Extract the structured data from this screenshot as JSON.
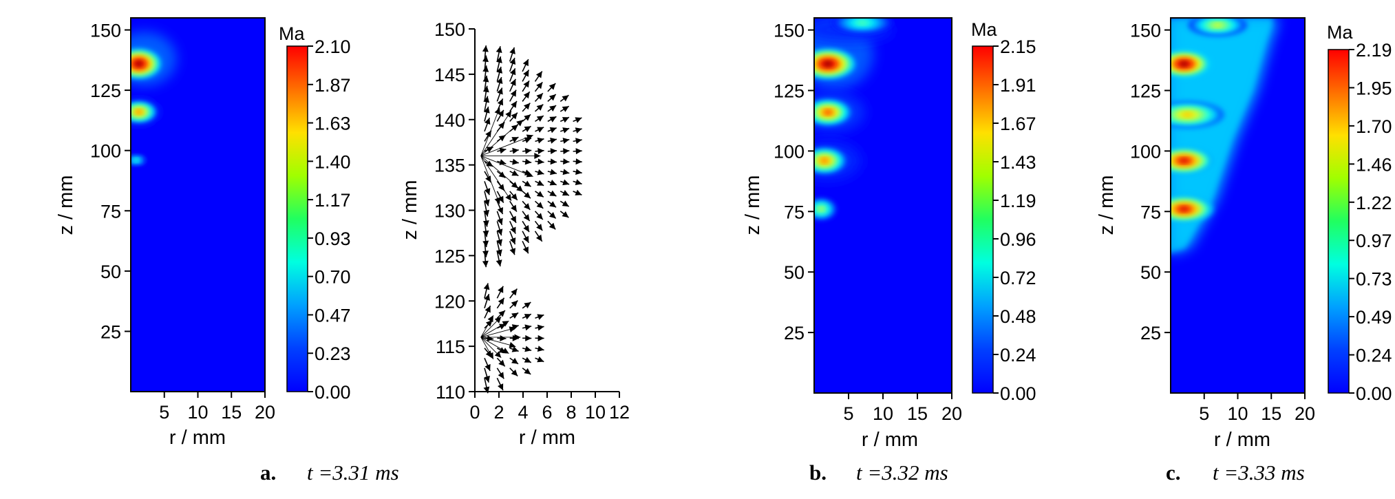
{
  "chart_data": [
    {
      "panel": "a",
      "type": "heatmap",
      "caption": {
        "letter": "a.",
        "time": "t =3.31 ms"
      },
      "xlabel": "r / mm",
      "ylabel": "z / mm",
      "xlim": [
        0,
        20
      ],
      "ylim": [
        0,
        155
      ],
      "xticks": [
        5,
        10,
        15,
        20
      ],
      "yticks": [
        25,
        50,
        75,
        100,
        125,
        150
      ],
      "colorbar": {
        "title": "Ma",
        "ticks": [
          "0.00",
          "0.23",
          "0.47",
          "0.70",
          "0.93",
          "1.17",
          "1.40",
          "1.63",
          "1.87",
          "2.10"
        ]
      },
      "hotspots": [
        {
          "r": 1.2,
          "z": 136,
          "ma": 2.1,
          "sr": 1.5,
          "sz": 2.8
        },
        {
          "r": 1.2,
          "z": 116,
          "ma": 1.6,
          "sr": 1.2,
          "sz": 2.0
        },
        {
          "r": 0.8,
          "z": 96,
          "ma": 0.9,
          "sr": 0.7,
          "sz": 1.0
        }
      ],
      "haze": [
        {
          "r": 2.0,
          "z": 138,
          "ma": 0.45,
          "sr": 3.0,
          "sz": 7.0
        },
        {
          "r": 1.2,
          "z": 116,
          "ma": 0.3,
          "sr": 2.0,
          "sz": 3.5
        }
      ]
    },
    {
      "panel": "a-vectors",
      "type": "scatter",
      "xlabel": "r / mm",
      "ylabel": "z / mm",
      "xlim": [
        0,
        12
      ],
      "ylim": [
        110,
        150
      ],
      "xticks": [
        "0",
        "2",
        "4",
        "6",
        "8",
        "10",
        "12"
      ],
      "yticks": [
        "110",
        "115",
        "120",
        "125",
        "130",
        "135",
        "140",
        "145",
        "150"
      ],
      "vector_fields": [
        {
          "source": [
            0.5,
            136
          ],
          "rmax": 9,
          "zmin": 125,
          "zmax": 147
        },
        {
          "source": [
            0.5,
            116
          ],
          "rmax": 6,
          "zmin": 111,
          "zmax": 121
        }
      ]
    },
    {
      "panel": "b",
      "type": "heatmap",
      "caption": {
        "letter": "b.",
        "time": "t =3.32 ms"
      },
      "xlabel": "r / mm",
      "ylabel": "z / mm",
      "xlim": [
        0,
        20
      ],
      "ylim": [
        0,
        155
      ],
      "xticks": [
        5,
        10,
        15,
        20
      ],
      "yticks": [
        25,
        50,
        75,
        100,
        125,
        150
      ],
      "colorbar": {
        "title": "Ma",
        "ticks": [
          "0.00",
          "0.24",
          "0.48",
          "0.72",
          "0.96",
          "1.19",
          "1.43",
          "1.67",
          "1.91",
          "2.15"
        ]
      },
      "hotspots": [
        {
          "r": 2.0,
          "z": 136,
          "ma": 2.15,
          "sr": 1.8,
          "sz": 2.8
        },
        {
          "r": 2.0,
          "z": 116,
          "ma": 1.75,
          "sr": 1.5,
          "sz": 2.4
        },
        {
          "r": 1.5,
          "z": 96,
          "ma": 1.65,
          "sr": 1.4,
          "sz": 2.4
        },
        {
          "r": 1.0,
          "z": 76,
          "ma": 1.2,
          "sr": 1.0,
          "sz": 2.0
        },
        {
          "r": 7.0,
          "z": 153,
          "ma": 1.0,
          "sr": 2.0,
          "sz": 2.0
        }
      ],
      "haze": [
        {
          "r": 3.0,
          "z": 140,
          "ma": 0.45,
          "sr": 3.5,
          "sz": 9.0
        },
        {
          "r": 2.5,
          "z": 116,
          "ma": 0.38,
          "sr": 3.0,
          "sz": 5.0
        },
        {
          "r": 2.0,
          "z": 96,
          "ma": 0.35,
          "sr": 3.0,
          "sz": 5.0
        },
        {
          "r": 5.0,
          "z": 150,
          "ma": 0.35,
          "sr": 4.0,
          "sz": 3.0
        }
      ]
    },
    {
      "panel": "c",
      "type": "heatmap",
      "caption": {
        "letter": "c.",
        "time": "t =3.33 ms"
      },
      "xlabel": "r / mm",
      "ylabel": "z / mm",
      "xlim": [
        0,
        20
      ],
      "ylim": [
        0,
        155
      ],
      "xticks": [
        5,
        10,
        15,
        20
      ],
      "yticks": [
        25,
        50,
        75,
        100,
        125,
        150
      ],
      "colorbar": {
        "title": "Ma",
        "ticks": [
          "0.00",
          "0.24",
          "0.49",
          "0.73",
          "0.97",
          "1.22",
          "1.46",
          "1.70",
          "1.95",
          "2.19"
        ]
      },
      "hotspots": [
        {
          "r": 2.0,
          "z": 136,
          "ma": 2.19,
          "sr": 1.8,
          "sz": 2.5
        },
        {
          "r": 2.5,
          "z": 115,
          "ma": 1.5,
          "sr": 2.5,
          "sz": 2.5
        },
        {
          "r": 2.0,
          "z": 96,
          "ma": 2.0,
          "sr": 2.0,
          "sz": 2.5
        },
        {
          "r": 2.0,
          "z": 76,
          "ma": 2.0,
          "sr": 2.0,
          "sz": 2.5
        },
        {
          "r": 7.0,
          "z": 152,
          "ma": 1.3,
          "sr": 2.0,
          "sz": 2.0
        }
      ],
      "region": {
        "ma": 0.85,
        "boundary": [
          [
            0,
            57
          ],
          [
            3,
            60
          ],
          [
            7,
            80
          ],
          [
            10,
            105
          ],
          [
            13,
            125
          ],
          [
            15,
            145
          ],
          [
            16,
            153
          ],
          [
            16,
            155
          ],
          [
            0,
            155
          ]
        ]
      }
    }
  ]
}
